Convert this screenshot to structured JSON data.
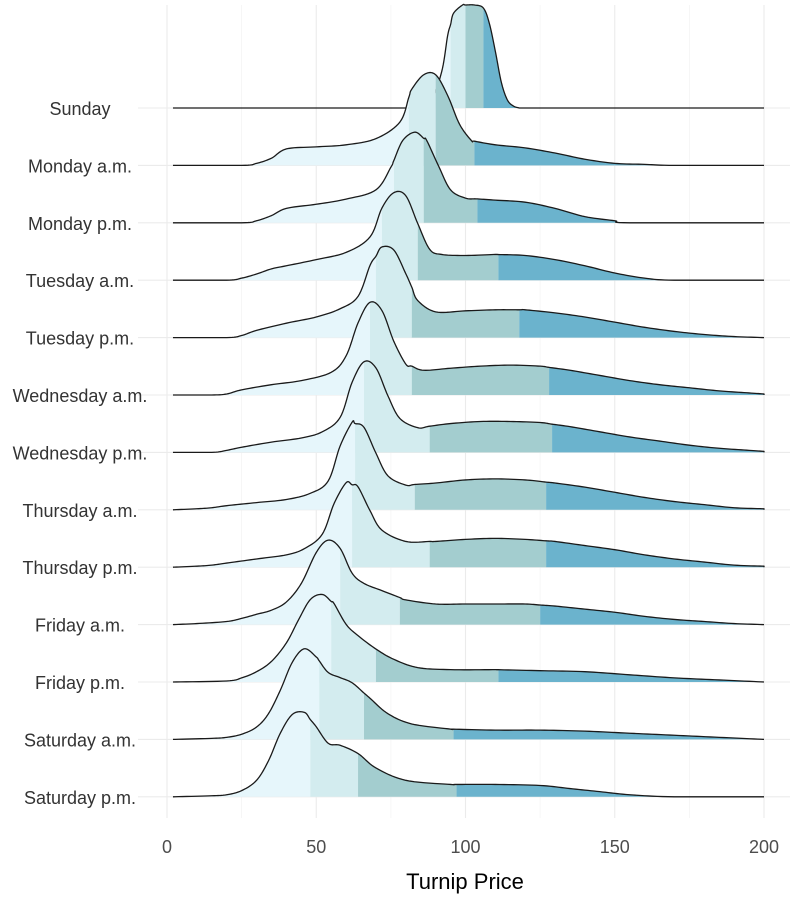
{
  "chart_data": {
    "type": "ridgeline",
    "title": "",
    "xlabel": "Turnip Price",
    "ylabel": "",
    "xlim": [
      0,
      200
    ],
    "xticks": [
      0,
      50,
      100,
      150,
      200
    ],
    "grid": true,
    "legend": "none",
    "quantile_colors": [
      "#e6f6fb",
      "#d3ecef",
      "#a3cdcf",
      "#6bb3cd"
    ],
    "series": [
      {
        "name": "Sunday",
        "quantiles": [
          95,
          100,
          106
        ],
        "x": [
          83,
          88,
          92,
          94,
          96,
          99,
          103,
          106,
          108,
          110,
          112,
          114,
          116,
          118
        ],
        "density": [
          0,
          0.04,
          0.35,
          0.7,
          0.92,
          1.0,
          1.0,
          0.97,
          0.82,
          0.55,
          0.25,
          0.08,
          0.02,
          0
        ]
      },
      {
        "name": "Monday a.m.",
        "quantiles": [
          81,
          90,
          103
        ],
        "x": [
          2,
          25,
          30,
          35,
          40,
          50,
          60,
          70,
          78,
          82,
          86,
          90,
          94,
          98,
          102,
          110,
          120,
          130,
          140,
          150,
          160,
          170,
          200
        ],
        "density": [
          0,
          0,
          0.02,
          0.07,
          0.16,
          0.18,
          0.2,
          0.26,
          0.42,
          0.74,
          0.88,
          0.88,
          0.68,
          0.4,
          0.24,
          0.2,
          0.17,
          0.12,
          0.06,
          0.02,
          0.01,
          0,
          0
        ]
      },
      {
        "name": "Monday p.m.",
        "quantiles": [
          76,
          86,
          104
        ],
        "x": [
          2,
          25,
          30,
          35,
          40,
          50,
          60,
          70,
          75,
          79,
          83,
          87,
          91,
          95,
          100,
          110,
          120,
          130,
          140,
          150,
          155,
          200
        ],
        "density": [
          0,
          0,
          0.02,
          0.07,
          0.14,
          0.18,
          0.23,
          0.32,
          0.54,
          0.8,
          0.88,
          0.8,
          0.55,
          0.32,
          0.24,
          0.22,
          0.2,
          0.14,
          0.06,
          0.02,
          0,
          0
        ]
      },
      {
        "name": "Tuesday a.m.",
        "quantiles": [
          72,
          84,
          111
        ],
        "x": [
          2,
          20,
          25,
          30,
          35,
          40,
          50,
          60,
          68,
          72,
          76,
          80,
          84,
          88,
          92,
          100,
          110,
          120,
          130,
          140,
          150,
          160,
          170,
          200
        ],
        "density": [
          0,
          0,
          0.02,
          0.06,
          0.11,
          0.14,
          0.2,
          0.27,
          0.42,
          0.7,
          0.85,
          0.82,
          0.55,
          0.3,
          0.25,
          0.24,
          0.25,
          0.24,
          0.2,
          0.14,
          0.07,
          0.02,
          0,
          0
        ]
      },
      {
        "name": "Tuesday p.m.",
        "quantiles": [
          70,
          82,
          118
        ],
        "x": [
          2,
          20,
          25,
          30,
          40,
          50,
          58,
          64,
          68,
          72,
          76,
          80,
          84,
          90,
          100,
          110,
          120,
          130,
          140,
          150,
          160,
          170,
          180,
          190,
          200
        ],
        "density": [
          0,
          0,
          0.02,
          0.07,
          0.14,
          0.2,
          0.28,
          0.4,
          0.7,
          0.88,
          0.85,
          0.62,
          0.36,
          0.25,
          0.26,
          0.27,
          0.27,
          0.24,
          0.2,
          0.15,
          0.1,
          0.06,
          0.03,
          0.01,
          0
        ]
      },
      {
        "name": "Wednesday a.m.",
        "quantiles": [
          68,
          82,
          128
        ],
        "x": [
          2,
          15,
          20,
          25,
          35,
          45,
          55,
          60,
          64,
          68,
          72,
          76,
          80,
          86,
          95,
          105,
          115,
          125,
          135,
          145,
          155,
          165,
          175,
          185,
          195,
          200
        ],
        "density": [
          0,
          0,
          0.01,
          0.05,
          0.1,
          0.14,
          0.22,
          0.38,
          0.7,
          0.9,
          0.82,
          0.52,
          0.3,
          0.24,
          0.26,
          0.28,
          0.29,
          0.28,
          0.24,
          0.19,
          0.14,
          0.1,
          0.07,
          0.04,
          0.02,
          0.01
        ]
      },
      {
        "name": "Wednesday p.m.",
        "quantiles": [
          66,
          88,
          129
        ],
        "x": [
          2,
          15,
          20,
          25,
          35,
          45,
          52,
          58,
          62,
          66,
          70,
          74,
          78,
          84,
          95,
          105,
          115,
          125,
          135,
          145,
          155,
          165,
          175,
          185,
          195,
          200
        ],
        "density": [
          0,
          0,
          0.02,
          0.05,
          0.1,
          0.14,
          0.2,
          0.34,
          0.68,
          0.88,
          0.82,
          0.55,
          0.33,
          0.24,
          0.28,
          0.3,
          0.3,
          0.29,
          0.25,
          0.2,
          0.15,
          0.11,
          0.07,
          0.04,
          0.02,
          0.01
        ]
      },
      {
        "name": "Thursday a.m.",
        "quantiles": [
          63,
          83,
          127
        ],
        "x": [
          2,
          10,
          15,
          20,
          30,
          40,
          48,
          54,
          58,
          62,
          66,
          70,
          74,
          80,
          90,
          100,
          110,
          120,
          130,
          140,
          150,
          160,
          170,
          180,
          190,
          200
        ],
        "density": [
          0,
          0.01,
          0.02,
          0.04,
          0.07,
          0.1,
          0.16,
          0.28,
          0.62,
          0.85,
          0.8,
          0.55,
          0.33,
          0.24,
          0.26,
          0.29,
          0.3,
          0.29,
          0.26,
          0.22,
          0.17,
          0.12,
          0.08,
          0.05,
          0.02,
          0.01
        ]
      },
      {
        "name": "Thursday p.m.",
        "quantiles": [
          62,
          88,
          127
        ],
        "x": [
          2,
          10,
          15,
          20,
          30,
          40,
          46,
          52,
          56,
          60,
          64,
          68,
          72,
          80,
          90,
          100,
          110,
          120,
          130,
          140,
          150,
          160,
          170,
          180,
          190,
          200
        ],
        "density": [
          0,
          0.01,
          0.02,
          0.04,
          0.08,
          0.12,
          0.18,
          0.32,
          0.62,
          0.82,
          0.78,
          0.55,
          0.36,
          0.25,
          0.25,
          0.27,
          0.28,
          0.27,
          0.25,
          0.21,
          0.17,
          0.12,
          0.08,
          0.05,
          0.02,
          0.01
        ]
      },
      {
        "name": "Friday a.m.",
        "quantiles": [
          58,
          78,
          125
        ],
        "x": [
          2,
          10,
          20,
          25,
          30,
          35,
          40,
          45,
          50,
          54,
          58,
          62,
          66,
          72,
          80,
          90,
          100,
          110,
          120,
          130,
          140,
          150,
          160,
          170,
          180,
          190,
          200
        ],
        "density": [
          0,
          0.01,
          0.03,
          0.06,
          0.1,
          0.14,
          0.22,
          0.4,
          0.7,
          0.82,
          0.74,
          0.5,
          0.4,
          0.33,
          0.24,
          0.2,
          0.2,
          0.2,
          0.2,
          0.18,
          0.15,
          0.12,
          0.08,
          0.05,
          0.03,
          0.01,
          0
        ]
      },
      {
        "name": "Friday p.m.",
        "quantiles": [
          55,
          70,
          111
        ],
        "x": [
          2,
          20,
          25,
          30,
          35,
          40,
          44,
          48,
          52,
          56,
          60,
          64,
          70,
          76,
          84,
          95,
          110,
          125,
          140,
          155,
          170,
          185,
          200
        ],
        "density": [
          0,
          0.01,
          0.04,
          0.1,
          0.2,
          0.38,
          0.6,
          0.8,
          0.85,
          0.76,
          0.56,
          0.45,
          0.32,
          0.22,
          0.14,
          0.12,
          0.12,
          0.11,
          0.1,
          0.07,
          0.04,
          0.02,
          0
        ]
      },
      {
        "name": "Saturday a.m.",
        "quantiles": [
          51,
          66,
          96
        ],
        "x": [
          2,
          15,
          20,
          25,
          30,
          34,
          38,
          42,
          46,
          50,
          54,
          58,
          62,
          68,
          74,
          82,
          95,
          110,
          125,
          140,
          155,
          170,
          185,
          200
        ],
        "density": [
          0,
          0.01,
          0.02,
          0.05,
          0.12,
          0.25,
          0.48,
          0.75,
          0.88,
          0.8,
          0.65,
          0.6,
          0.55,
          0.4,
          0.25,
          0.15,
          0.1,
          0.09,
          0.09,
          0.08,
          0.06,
          0.04,
          0.02,
          0
        ]
      },
      {
        "name": "Saturday p.m.",
        "quantiles": [
          48,
          64,
          97
        ],
        "x": [
          2,
          15,
          20,
          25,
          30,
          34,
          38,
          42,
          46,
          50,
          54,
          58,
          64,
          70,
          80,
          95,
          110,
          125,
          135,
          145,
          155,
          170,
          200
        ],
        "density": [
          0,
          0.01,
          0.02,
          0.06,
          0.16,
          0.35,
          0.62,
          0.8,
          0.82,
          0.68,
          0.52,
          0.5,
          0.42,
          0.28,
          0.16,
          0.12,
          0.12,
          0.11,
          0.08,
          0.05,
          0.02,
          0,
          0
        ]
      }
    ]
  }
}
